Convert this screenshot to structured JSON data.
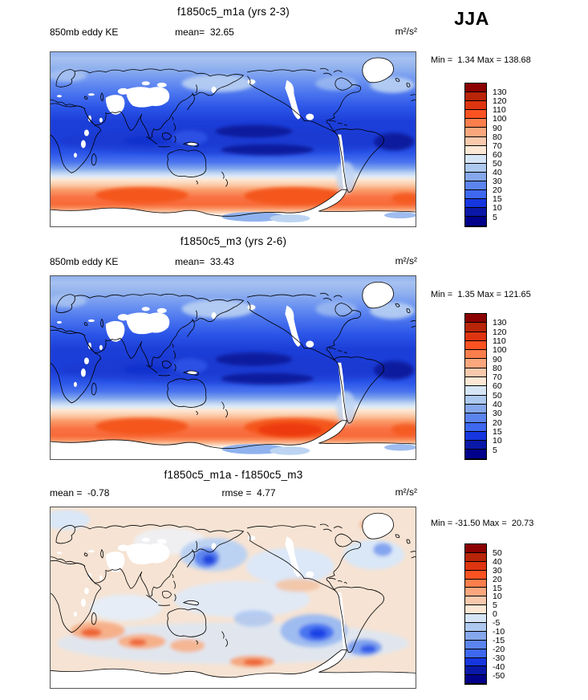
{
  "season_label": "JJA",
  "palette_top_to_bottom": [
    "#8B0000",
    "#B82508",
    "#DE3510",
    "#FB5222",
    "#FB7E4D",
    "#FAA77E",
    "#F9C9AD",
    "#FCE8D5",
    "#D6E5F6",
    "#AEC9F0",
    "#86A7EC",
    "#5C84EE",
    "#3E68F0",
    "#1636E0",
    "#0A18A8",
    "#00008B"
  ],
  "panels": [
    {
      "title": "f1850c5_m1a (yrs 2-3)",
      "left_label": "850mb eddy KE",
      "center_stat": "mean=  32.65",
      "units": "m²/s²",
      "minmax": "Min =  1.34 Max = 138.68"
    },
    {
      "title": "f1850c5_m3 (yrs 2-6)",
      "left_label": "850mb eddy KE",
      "center_stat": "mean=  33.43",
      "units": "m²/s²",
      "minmax": "Min =  1.35 Max = 121.65"
    },
    {
      "title": "f1850c5_m1a - f1850c5_m3",
      "left_label": "mean =  -0.78",
      "center_stat": "rmse =  4.77",
      "units": "m²/s²",
      "minmax": "Min = -31.50 Max =  20.73"
    }
  ],
  "colorbars": [
    {
      "labels": [
        "130",
        "120",
        "110",
        "100",
        "90",
        "80",
        "70",
        "60",
        "50",
        "40",
        "30",
        "20",
        "15",
        "10",
        "5"
      ],
      "box_height": 11.1
    },
    {
      "labels": [
        "130",
        "120",
        "110",
        "100",
        "90",
        "80",
        "70",
        "60",
        "50",
        "40",
        "30",
        "20",
        "15",
        "10",
        "5"
      ],
      "box_height": 11.3
    },
    {
      "labels": [
        "50",
        "40",
        "30",
        "20",
        "15",
        "10",
        "5",
        "0",
        "-5",
        "-10",
        "-15",
        "-20",
        "-30",
        "-40",
        "-50"
      ],
      "box_height": 10.9
    }
  ],
  "chart_data": [
    {
      "type": "heatmap",
      "title": "f1850c5_m1a (yrs 2-3)",
      "variable": "850mb eddy KE",
      "season": "JJA",
      "units": "m²/s²",
      "mean": 32.65,
      "min": 1.34,
      "max": 138.68,
      "contour_levels": [
        5,
        10,
        15,
        20,
        30,
        40,
        50,
        60,
        70,
        80,
        90,
        100,
        110,
        120,
        130
      ],
      "palette_top_to_bottom": [
        "#8B0000",
        "#B82508",
        "#DE3510",
        "#FB5222",
        "#FB7E4D",
        "#FAA77E",
        "#F9C9AD",
        "#FCE8D5",
        "#D6E5F6",
        "#AEC9F0",
        "#86A7EC",
        "#5C84EE",
        "#3E68F0",
        "#1636E0",
        "#0A18A8",
        "#00008B"
      ],
      "projection": "global cylindrical equidistant, lon 0-360E, lat 90N-90S",
      "legend_position": "right",
      "pattern_summary": "Low eddy KE (5-20, dark blue) across tropics; moderate values (30-60, light blue) at northern high latitudes; high eddy KE band (60-130, orange-red) over Southern Ocean 40-65S; white masked terrain over Tibet, Rockies, Andes, Greenland, Antarctica"
    },
    {
      "type": "heatmap",
      "title": "f1850c5_m3 (yrs 2-6)",
      "variable": "850mb eddy KE",
      "season": "JJA",
      "units": "m²/s²",
      "mean": 33.43,
      "min": 1.35,
      "max": 121.65,
      "contour_levels": [
        5,
        10,
        15,
        20,
        30,
        40,
        50,
        60,
        70,
        80,
        90,
        100,
        110,
        120,
        130
      ],
      "palette_top_to_bottom": [
        "#8B0000",
        "#B82508",
        "#DE3510",
        "#FB5222",
        "#FB7E4D",
        "#FAA77E",
        "#F9C9AD",
        "#FCE8D5",
        "#D6E5F6",
        "#AEC9F0",
        "#86A7EC",
        "#5C84EE",
        "#3E68F0",
        "#1636E0",
        "#0A18A8",
        "#00008B"
      ],
      "projection": "global cylindrical equidistant, lon 0-360E, lat 90N-90S",
      "legend_position": "right",
      "pattern_summary": "Same structure as panel 1 with slightly stronger Southern Ocean maximum south of New Zealand"
    },
    {
      "type": "heatmap",
      "title": "f1850c5_m1a - f1850c5_m3",
      "variable": "850mb eddy KE difference",
      "season": "JJA",
      "units": "m²/s²",
      "mean": -0.78,
      "rmse": 4.77,
      "min": -31.5,
      "max": 20.73,
      "contour_levels": [
        -50,
        -40,
        -30,
        -20,
        -15,
        -10,
        -5,
        0,
        5,
        10,
        15,
        20,
        30,
        40,
        50
      ],
      "palette_top_to_bottom": [
        "#8B0000",
        "#B82508",
        "#DE3510",
        "#FB5222",
        "#FB7E4D",
        "#FAA77E",
        "#F9C9AD",
        "#FCE8D5",
        "#D6E5F6",
        "#AEC9F0",
        "#86A7EC",
        "#5C84EE",
        "#3E68F0",
        "#1636E0",
        "#0A18A8",
        "#00008B"
      ],
      "projection": "global cylindrical equidistant, lon 0-360E, lat 90N-90S",
      "legend_position": "right",
      "pattern_summary": "Mostly weak differences (-5 to +5); negative (blue) centers over NW Pacific near Japan and central South Pacific ~50S; positive (red) centers over southern Indian Ocean and near Antarctic coast south of Australia"
    }
  ]
}
